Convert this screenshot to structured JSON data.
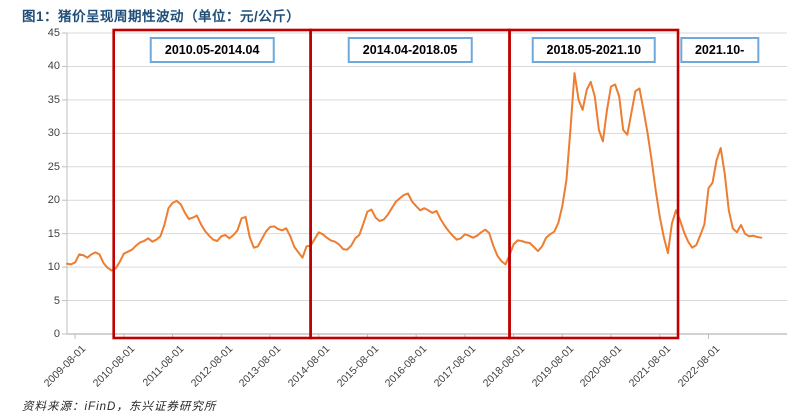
{
  "title": "图1：猪价呈现周期性波动（单位：元/公斤）",
  "source": "资料来源：iFinD，东兴证券研究所",
  "colors": {
    "title": "#1F4E79",
    "line": "#ED7D31",
    "cycle_box": "#C00000",
    "label_border": "#6FA8DC",
    "grid": "#D9D9D9",
    "axis": "#BFBFBF",
    "axis_text": "#404040"
  },
  "periods": [
    {
      "label": "2010.05-2014.04",
      "start_index": 11.5,
      "end_index": 60,
      "boxed": true
    },
    {
      "label": "2014.04-2018.05",
      "start_index": 60,
      "end_index": 109,
      "boxed": true
    },
    {
      "label": "2018.05-2021.10",
      "start_index": 109,
      "end_index": 150.5,
      "boxed": true
    },
    {
      "label": "2021.10-",
      "start_index": 150.5,
      "end_index": null,
      "boxed": false
    }
  ],
  "chart_data": {
    "type": "line",
    "title": "猪价呈现周期性波动",
    "unit": "元/公斤",
    "ylabel": "",
    "xlabel": "",
    "ylim": [
      0,
      45
    ],
    "y_ticks": [
      0,
      5,
      10,
      15,
      20,
      25,
      30,
      35,
      40,
      45
    ],
    "grid": true,
    "legend": false,
    "frequency": "monthly",
    "series_start": "2009-06",
    "x_tick_labels": [
      "2009-08-01",
      "2010-08-01",
      "2011-08-01",
      "2012-08-01",
      "2013-08-01",
      "2014-08-01",
      "2015-08-01",
      "2016-08-01",
      "2017-08-01",
      "2018-08-01",
      "2019-08-01",
      "2020-08-01",
      "2021-08-01",
      "2022-08-01"
    ],
    "x_tick_start_index": 2,
    "x_tick_every": 12,
    "values": [
      10.5,
      10.4,
      10.7,
      11.9,
      11.8,
      11.4,
      11.9,
      12.2,
      11.9,
      10.6,
      9.9,
      9.5,
      9.8,
      10.8,
      12.0,
      12.3,
      12.6,
      13.2,
      13.7,
      13.9,
      14.3,
      13.8,
      14.1,
      14.6,
      16.3,
      18.8,
      19.6,
      19.9,
      19.4,
      18.2,
      17.2,
      17.4,
      17.7,
      16.4,
      15.4,
      14.7,
      14.1,
      13.9,
      14.6,
      14.8,
      14.3,
      14.8,
      15.5,
      17.3,
      17.5,
      14.5,
      12.9,
      13.1,
      14.2,
      15.3,
      16.0,
      16.1,
      15.7,
      15.5,
      15.8,
      14.6,
      13.0,
      12.2,
      11.4,
      13.1,
      13.2,
      14.2,
      15.2,
      14.9,
      14.4,
      14.0,
      13.8,
      13.4,
      12.7,
      12.6,
      13.2,
      14.3,
      14.8,
      16.5,
      18.3,
      18.6,
      17.4,
      16.9,
      17.1,
      17.8,
      18.8,
      19.8,
      20.3,
      20.8,
      21.0,
      19.8,
      19.1,
      18.5,
      18.8,
      18.5,
      18.1,
      18.4,
      17.2,
      16.2,
      15.4,
      14.7,
      14.1,
      14.3,
      14.9,
      14.7,
      14.4,
      14.7,
      15.2,
      15.6,
      15.1,
      13.2,
      11.7,
      10.9,
      10.4,
      11.8,
      13.4,
      14.0,
      13.9,
      13.7,
      13.6,
      13.0,
      12.4,
      13.1,
      14.4,
      14.9,
      15.3,
      16.6,
      19.1,
      23.0,
      30.5,
      39.0,
      35.0,
      33.5,
      36.5,
      37.7,
      35.5,
      30.5,
      28.8,
      33.5,
      37.0,
      37.3,
      35.5,
      30.5,
      29.8,
      33.0,
      36.3,
      36.7,
      33.5,
      30.0,
      26.0,
      21.5,
      17.5,
      14.5,
      12.1,
      16.5,
      18.5,
      17.0,
      15.2,
      13.8,
      12.9,
      13.3,
      14.8,
      16.4,
      21.8,
      22.6,
      26.0,
      27.8,
      24.0,
      18.5,
      15.8,
      15.2,
      16.3,
      15.0,
      14.6,
      14.7,
      14.5,
      14.4
    ]
  }
}
